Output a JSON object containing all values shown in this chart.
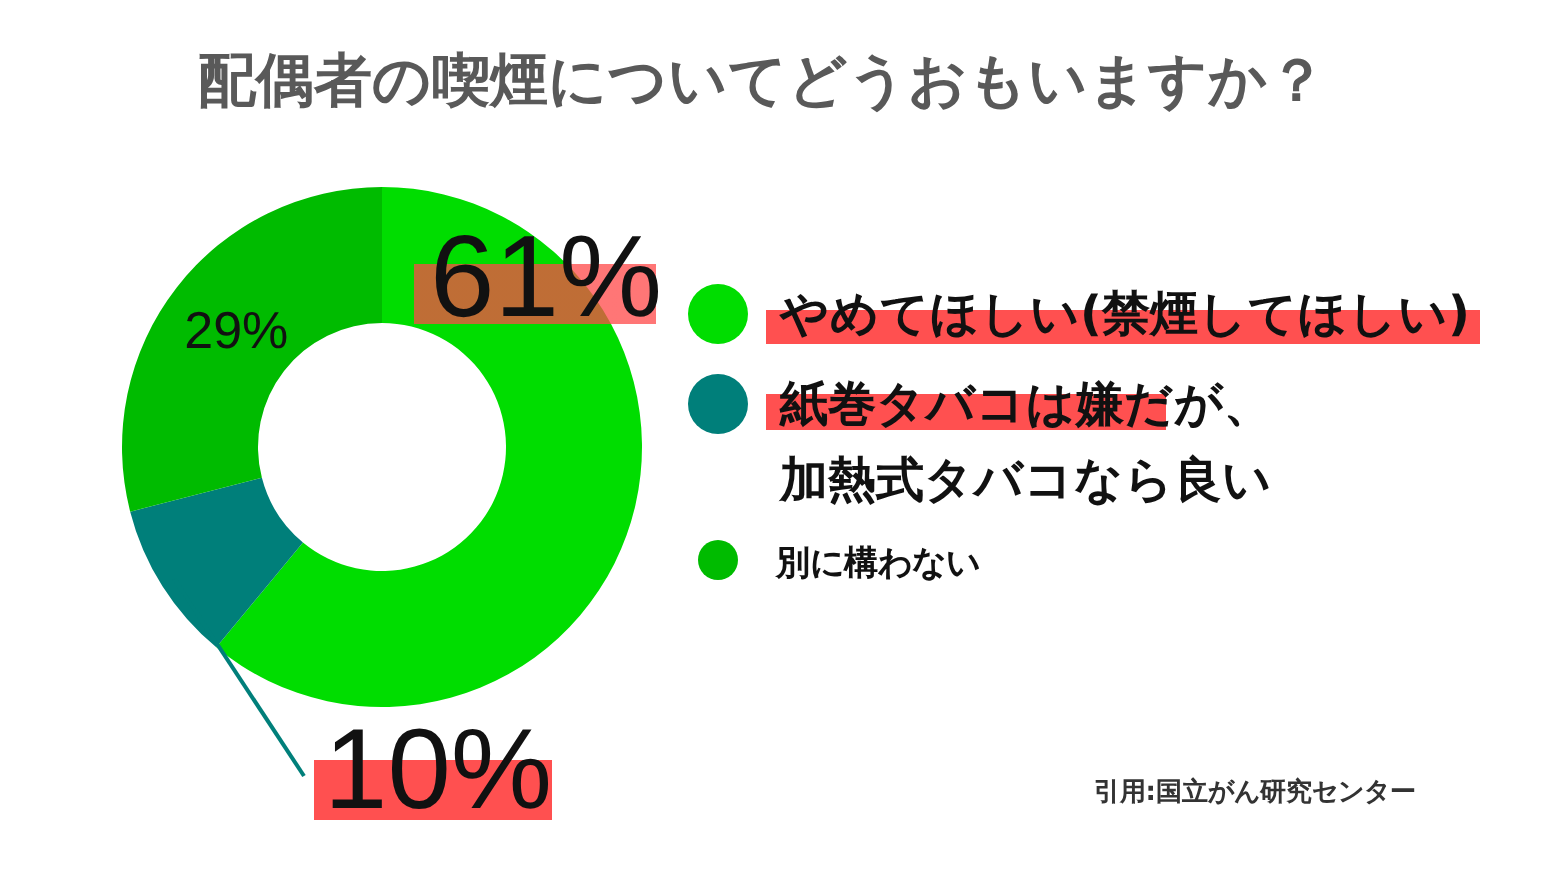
{
  "chart_data": {
    "type": "donut",
    "title": "配偶者の喫煙についてどうおもいますか？",
    "categories": [
      "やめてほしい(禁煙してほしい)",
      "紙巻タバコは嫌だが、加熱式タバコなら良い",
      "別に構わない"
    ],
    "values": [
      61,
      10,
      29
    ],
    "colors": [
      "#00dd00",
      "#007f7a",
      "#00bb00"
    ],
    "value_labels": [
      "61%",
      "10%",
      "29%"
    ],
    "legend": "right",
    "annotations": [
      "引用:国立がん研究センター"
    ]
  }
}
